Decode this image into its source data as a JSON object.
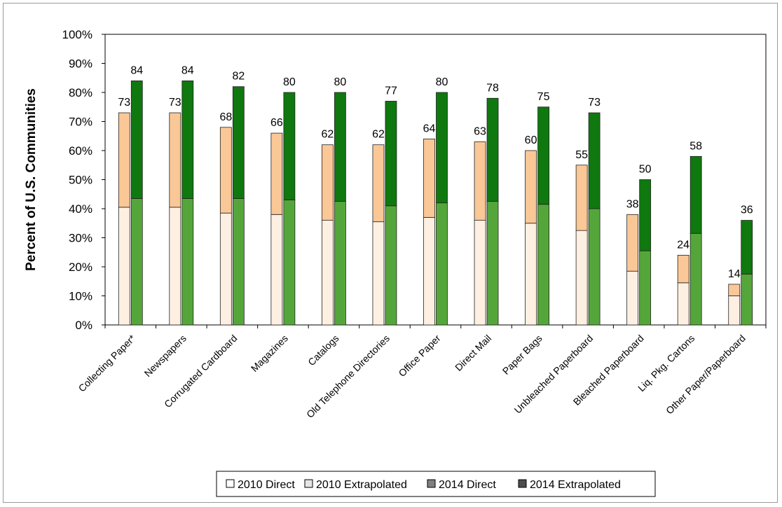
{
  "chart_data": {
    "type": "bar",
    "subtype": "stacked-grouped",
    "ylabel": "Percent of U.S. Communities",
    "xlabel": "",
    "ylim": [
      0,
      100
    ],
    "y_ticks": [
      "0%",
      "10%",
      "20%",
      "30%",
      "40%",
      "50%",
      "60%",
      "70%",
      "80%",
      "90%",
      "100%"
    ],
    "grid": false,
    "legend_position": "bottom",
    "categories": [
      "Collecting Paper*",
      "Newspapers",
      "Corrugated Cardboard",
      "Magazines",
      "Catalogs",
      "Old Telephone Directories",
      "Office Paper",
      "Direct Mail",
      "Paper Bags",
      "Unbleached Paperboard",
      "Bleached Paperboard",
      "Liq. Pkg. Cartons",
      "Other Paper/Paperboard"
    ],
    "groups": [
      {
        "year": "2010",
        "totals": [
          73,
          73,
          68,
          66,
          62,
          62,
          64,
          63,
          60,
          55,
          38,
          24,
          14
        ],
        "series": [
          {
            "name": "2010 Direct",
            "color": "#fdf0e2",
            "values": [
              40.5,
              40.5,
              38.5,
              38,
              36,
              35.5,
              37,
              36,
              35,
              32.5,
              18.5,
              14.5,
              10
            ]
          },
          {
            "name": "2010 Extrapolated",
            "color": "#fac796",
            "values": [
              32.5,
              32.5,
              29.5,
              28,
              26,
              26.5,
              27,
              27,
              25,
              22.5,
              19.5,
              9.5,
              4
            ]
          }
        ]
      },
      {
        "year": "2014",
        "totals": [
          84,
          84,
          82,
          80,
          80,
          77,
          80,
          78,
          75,
          73,
          50,
          58,
          36
        ],
        "series": [
          {
            "name": "2014 Direct",
            "color": "#55a63a",
            "values": [
              43.5,
              43.5,
              43.5,
              43,
              42.5,
              41,
              42,
              42.5,
              41.5,
              40,
              25.5,
              31.5,
              17.5
            ]
          },
          {
            "name": "2014 Extrapolated",
            "color": "#0f780f",
            "values": [
              40.5,
              40.5,
              38.5,
              37,
              37.5,
              36,
              38,
              35.5,
              33.5,
              33,
              24.5,
              26.5,
              18.5
            ]
          }
        ]
      }
    ],
    "legend": [
      {
        "label": "2010 Direct",
        "swatch": "#ffffff"
      },
      {
        "label": "2010 Extrapolated",
        "swatch": "#e6e6e6"
      },
      {
        "label": "2014 Direct",
        "swatch": "#808080"
      },
      {
        "label": "2014 Extrapolated",
        "swatch": "#4d4d4d"
      }
    ]
  }
}
